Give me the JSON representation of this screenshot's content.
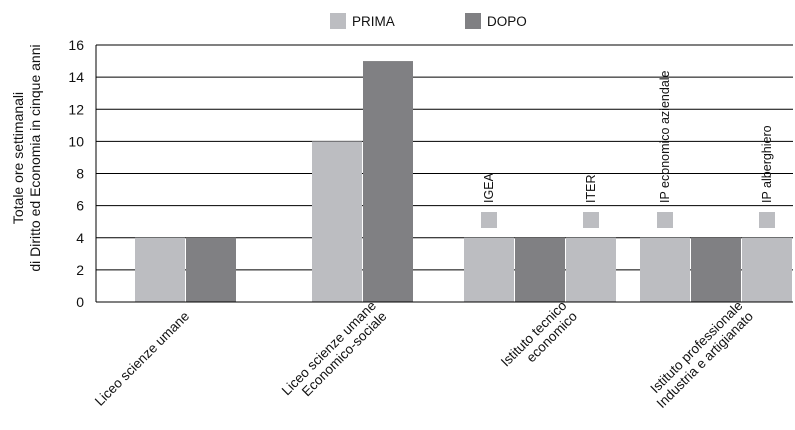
{
  "chart_data": {
    "type": "bar",
    "ylabel_lines": [
      "Totale ore settimanali",
      "di Diritto ed Economia in cinque anni"
    ],
    "ylim": [
      0,
      16
    ],
    "yticks": [
      0,
      2,
      4,
      6,
      8,
      10,
      12,
      14,
      16
    ],
    "grid": true,
    "legend_position": "top",
    "colors": {
      "prima": "#bcbdc1",
      "dopo": "#808083"
    },
    "series": [
      {
        "name": "PRIMA",
        "color": "#bcbdc1"
      },
      {
        "name": "DOPO",
        "color": "#808083"
      }
    ],
    "categories": [
      {
        "lines": [
          "Liceo scienze umane"
        ],
        "bars": [
          {
            "series": 0,
            "value": 4
          },
          {
            "series": 1,
            "value": 4
          }
        ]
      },
      {
        "lines": [
          "Liceo scienze umane",
          "Economico-sociale"
        ],
        "bars": [
          {
            "series": 0,
            "value": 10
          },
          {
            "series": 1,
            "value": 15
          }
        ]
      },
      {
        "lines": [
          "Istituto tecnico",
          "economico"
        ],
        "bars": [
          {
            "series": 0,
            "value": 4,
            "annotation": "IGEA"
          },
          {
            "series": 1,
            "value": 4
          },
          {
            "series": 0,
            "value": 4,
            "annotation": "ITER"
          }
        ]
      },
      {
        "lines": [
          "Istituto professionale",
          "Industria e artigianato"
        ],
        "bars": [
          {
            "series": 0,
            "value": 4,
            "annotation": "IP economico aziendale"
          },
          {
            "series": 1,
            "value": 4
          },
          {
            "series": 0,
            "value": 4,
            "annotation": "IP alberghiero"
          }
        ]
      }
    ]
  }
}
